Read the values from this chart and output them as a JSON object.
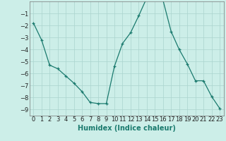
{
  "x": [
    0,
    1,
    2,
    3,
    4,
    5,
    6,
    7,
    8,
    9,
    10,
    11,
    12,
    13,
    14,
    15,
    16,
    17,
    18,
    19,
    20,
    21,
    22,
    23
  ],
  "y": [
    -1.8,
    -3.2,
    -5.3,
    -5.6,
    -6.2,
    -6.8,
    -7.5,
    -8.4,
    -8.5,
    -8.5,
    -5.4,
    -3.5,
    -2.6,
    -1.2,
    0.3,
    0.3,
    0.1,
    -2.5,
    -4.0,
    -5.2,
    -6.6,
    -6.6,
    -7.9,
    -8.9
  ],
  "xlabel": "Humidex (Indice chaleur)",
  "ylim": [
    -9.5,
    0.0
  ],
  "xlim": [
    -0.5,
    23.5
  ],
  "yticks": [
    -9,
    -8,
    -7,
    -6,
    -5,
    -4,
    -3,
    -2,
    -1
  ],
  "xticks": [
    0,
    1,
    2,
    3,
    4,
    5,
    6,
    7,
    8,
    9,
    10,
    11,
    12,
    13,
    14,
    15,
    16,
    17,
    18,
    19,
    20,
    21,
    22,
    23
  ],
  "line_color": "#1a7a6e",
  "marker": "+",
  "bg_color": "#cceee8",
  "grid_color": "#aad4ce",
  "xlabel_fontsize": 7,
  "tick_fontsize": 6
}
